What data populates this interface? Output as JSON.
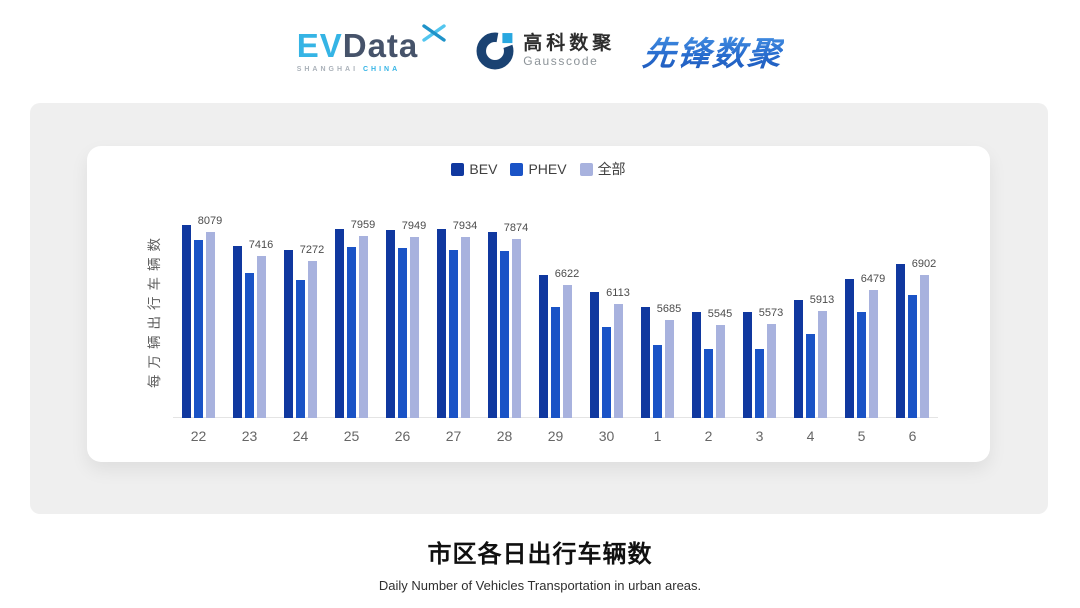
{
  "header": {
    "evdata": {
      "ev": "EV",
      "data": "Data",
      "sub_left": "SHANGHAI",
      "sub_right": "CHINA"
    },
    "gausscode": {
      "cn": "高科数聚",
      "en": "Gausscode"
    },
    "xianfeng": {
      "text": "先锋数聚"
    }
  },
  "colors": {
    "brand_cyan": "#35b4e5",
    "brand_slate": "#46536a",
    "gauss_navy": "#1a4272",
    "xianfeng_blue": "#2a6fd0",
    "panel_gray": "#efefef",
    "axis_line": "#e4e4e4"
  },
  "chart_data": {
    "type": "bar",
    "title": "市区各日出行车辆数",
    "subtitle": "Daily Number of Vehicles Transportation in urban areas.",
    "ylabel": "每万辆出行车辆数",
    "xlabel": "",
    "legend": [
      "BEV",
      "PHEV",
      "全部"
    ],
    "legend_position": "top-center",
    "grid": false,
    "ylim": [
      3000,
      9000
    ],
    "categories": [
      "22",
      "23",
      "24",
      "25",
      "26",
      "27",
      "28",
      "29",
      "30",
      "1",
      "2",
      "3",
      "4",
      "5",
      "6"
    ],
    "series": [
      {
        "name": "BEV",
        "color": "#10389f",
        "values": [
          8250,
          7680,
          7580,
          8160,
          8140,
          8150,
          8060,
          6910,
          6450,
          6020,
          5880,
          5890,
          6210,
          6790,
          7200
        ]
      },
      {
        "name": "PHEV",
        "color": "#1a53c6",
        "values": [
          7850,
          6950,
          6770,
          7650,
          7630,
          7590,
          7550,
          6020,
          5470,
          4990,
          4880,
          4870,
          5290,
          5890,
          6350
        ]
      },
      {
        "name": "全部",
        "color": "#a8b2de",
        "values": [
          8079,
          7416,
          7272,
          7959,
          7949,
          7934,
          7874,
          6622,
          6113,
          5685,
          5545,
          5573,
          5913,
          6479,
          6902
        ]
      }
    ],
    "data_labels": {
      "labeled_series": "全部",
      "values": [
        8079,
        7416,
        7272,
        7959,
        7949,
        7934,
        7874,
        6622,
        6113,
        5685,
        5545,
        5573,
        5913,
        6479,
        6902
      ]
    }
  }
}
